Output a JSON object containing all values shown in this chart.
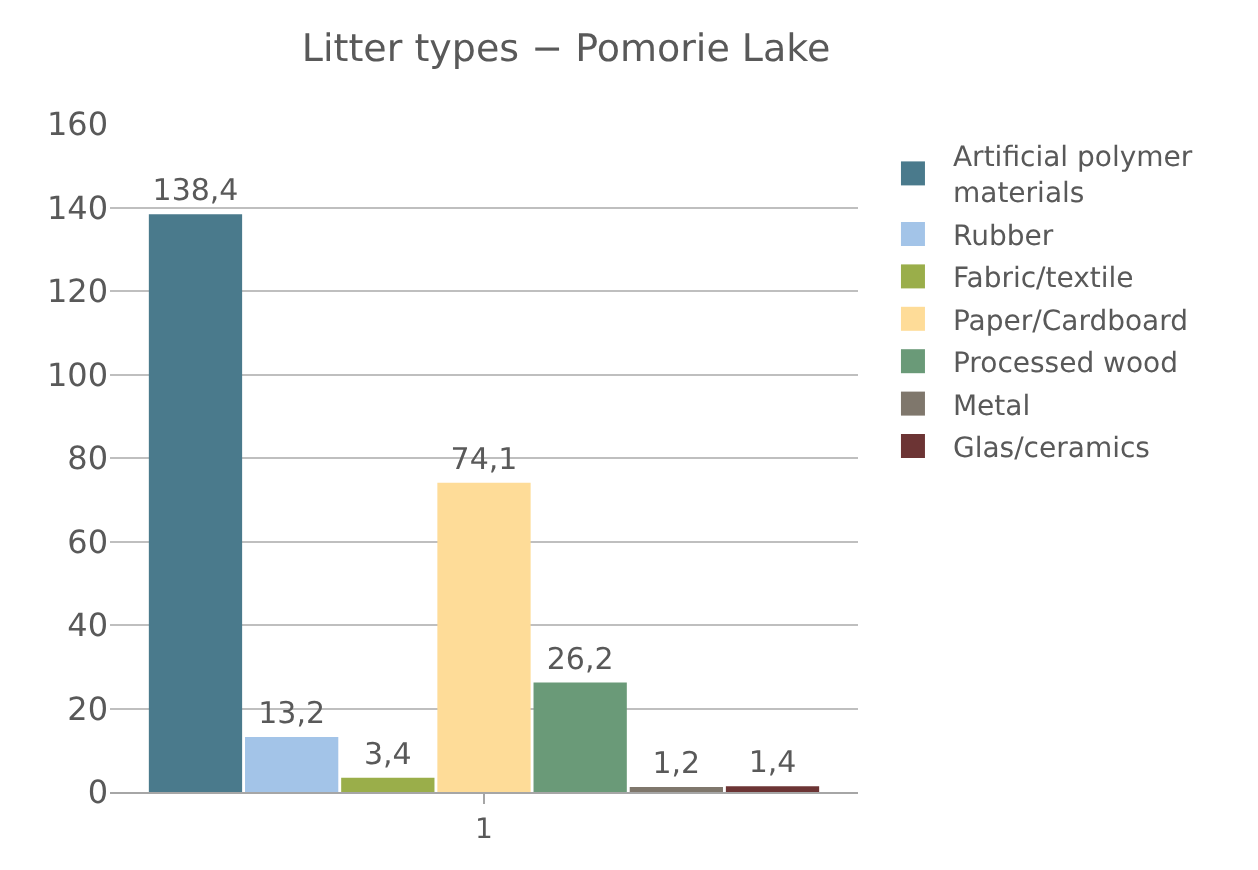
{
  "chart_data": {
    "type": "bar",
    "title": "Litter types − Pomorie Lake",
    "categories": [
      "1"
    ],
    "series": [
      {
        "name": "Artificial polymer materials",
        "color": "#4a7a8c",
        "values": [
          138.4
        ],
        "value_labels": [
          "138,4"
        ]
      },
      {
        "name": "Rubber",
        "color": "#a3c4e8",
        "values": [
          13.2
        ],
        "value_labels": [
          "13,2"
        ]
      },
      {
        "name": "Fabric/textile",
        "color": "#9aae4a",
        "values": [
          3.4
        ],
        "value_labels": [
          "3,4"
        ]
      },
      {
        "name": "Paper/Cardboard",
        "color": "#fedc98",
        "values": [
          74.1
        ],
        "value_labels": [
          "74,1"
        ]
      },
      {
        "name": "Processed wood",
        "color": "#6a9a78",
        "values": [
          26.2
        ],
        "value_labels": [
          "26,2"
        ]
      },
      {
        "name": "Metal",
        "color": "#7f776c",
        "values": [
          1.2
        ],
        "value_labels": [
          "1,2"
        ]
      },
      {
        "name": "Glas/ceramics",
        "color": "#6c3434",
        "values": [
          1.4
        ],
        "value_labels": [
          "1,4"
        ]
      }
    ],
    "ylim": [
      0,
      160
    ],
    "yticks": [
      0,
      20,
      40,
      60,
      80,
      100,
      120,
      140,
      160
    ],
    "grid": "y",
    "legend": "right"
  }
}
